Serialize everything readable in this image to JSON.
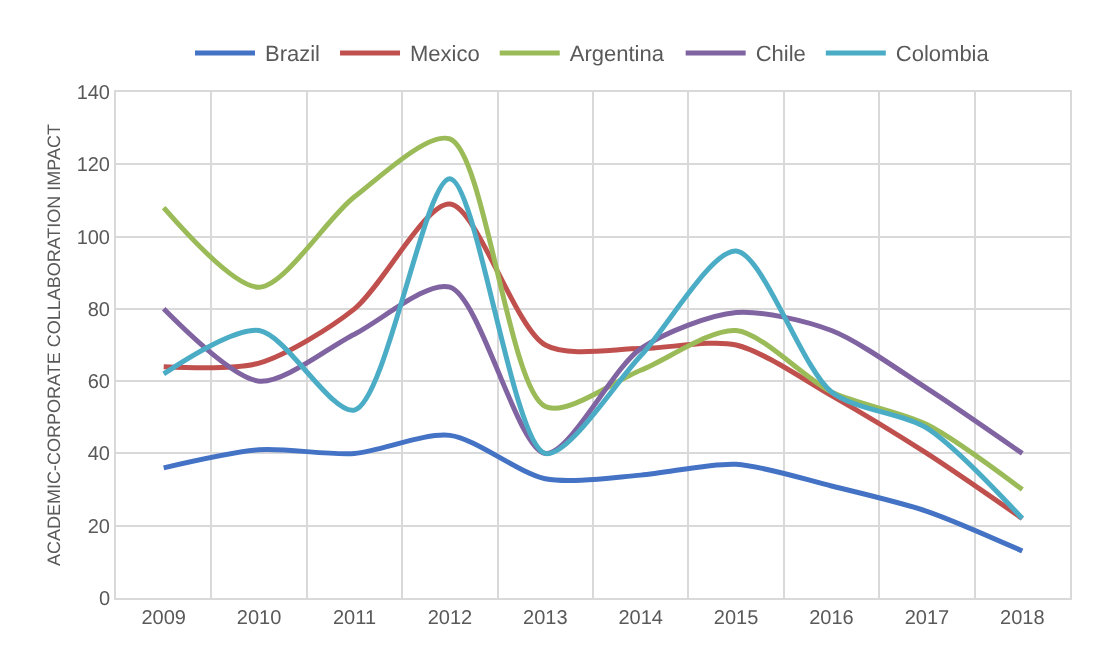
{
  "chart_data": {
    "type": "line",
    "ylabel": "ACADEMIC-CORPORATE COLLABORATION IMPACT",
    "categories": [
      "2009",
      "2010",
      "2011",
      "2012",
      "2013",
      "2014",
      "2015",
      "2016",
      "2017",
      "2018"
    ],
    "series": [
      {
        "name": "Brazil",
        "color": "#4472c4",
        "values": [
          36,
          41,
          40,
          45,
          33,
          34,
          37,
          31,
          24,
          13
        ]
      },
      {
        "name": "Mexico",
        "color": "#c0504d",
        "values": [
          64,
          65,
          80,
          109,
          70,
          69,
          70,
          56,
          40,
          22
        ]
      },
      {
        "name": "Argentina",
        "color": "#9bbb59",
        "values": [
          108,
          86,
          111,
          127,
          53,
          63,
          74,
          57,
          48,
          30
        ]
      },
      {
        "name": "Chile",
        "color": "#8064a2",
        "values": [
          80,
          60,
          73,
          86,
          40,
          69,
          79,
          74,
          58,
          40
        ]
      },
      {
        "name": "Colombia",
        "color": "#4bacc6",
        "values": [
          62,
          74,
          52,
          116,
          40,
          67,
          96,
          57,
          47,
          22
        ]
      }
    ],
    "ylim": [
      0,
      140
    ],
    "yticks": [
      0,
      20,
      40,
      60,
      80,
      100,
      120,
      140
    ],
    "grid": true,
    "legend": "top",
    "marker": "none",
    "line_style": "solid"
  }
}
